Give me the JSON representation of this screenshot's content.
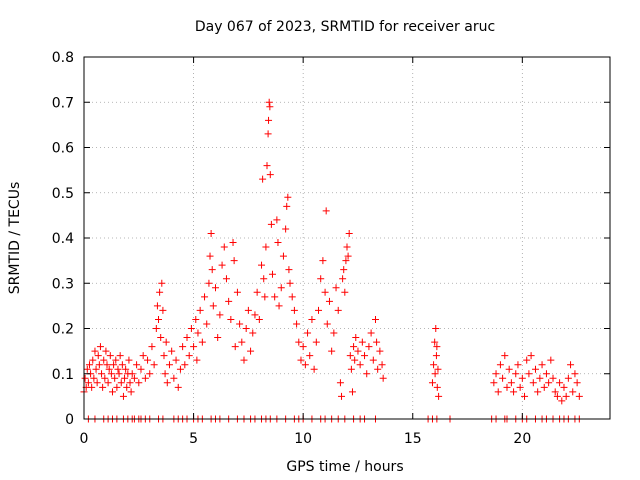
{
  "chart_data": {
    "type": "scatter",
    "title": "Day 067 of 2023, SRMTID for receiver aruc",
    "xlabel": "GPS time / hours",
    "ylabel": "SRMTID / TECUs",
    "xlim": [
      0,
      24
    ],
    "ylim": [
      0,
      0.8
    ],
    "xticks": [
      0,
      5,
      10,
      15,
      20
    ],
    "xtick_labels": [
      "0",
      "5",
      "10",
      "15",
      "20"
    ],
    "yticks": [
      0,
      0.1,
      0.2,
      0.3,
      0.4,
      0.5,
      0.6,
      0.7,
      0.8
    ],
    "ytick_labels": [
      "0",
      "0.1",
      "0.2",
      "0.3",
      "0.4",
      "0.5",
      "0.6",
      "0.7",
      "0.8"
    ],
    "grid": true,
    "marker": "+",
    "series": [
      {
        "name": "SRMTID",
        "color": "#ff0000",
        "points": [
          [
            0.0,
            0.06
          ],
          [
            0.05,
            0.09
          ],
          [
            0.1,
            0.07
          ],
          [
            0.15,
            0.11
          ],
          [
            0.2,
            0.08
          ],
          [
            0.25,
            0.12
          ],
          [
            0.3,
            0.1
          ],
          [
            0.35,
            0.07
          ],
          [
            0.4,
            0.13
          ],
          [
            0.45,
            0.09
          ],
          [
            0.5,
            0.15
          ],
          [
            0.55,
            0.11
          ],
          [
            0.6,
            0.08
          ],
          [
            0.65,
            0.14
          ],
          [
            0.7,
            0.12
          ],
          [
            0.75,
            0.16
          ],
          [
            0.8,
            0.1
          ],
          [
            0.85,
            0.07
          ],
          [
            0.9,
            0.13
          ],
          [
            0.95,
            0.09
          ],
          [
            1.0,
            0.15
          ],
          [
            1.05,
            0.12
          ],
          [
            1.1,
            0.08
          ],
          [
            1.15,
            0.11
          ],
          [
            1.2,
            0.14
          ],
          [
            1.25,
            0.1
          ],
          [
            1.3,
            0.06
          ],
          [
            1.35,
            0.12
          ],
          [
            1.4,
            0.09
          ],
          [
            1.45,
            0.13
          ],
          [
            1.5,
            0.07
          ],
          [
            1.55,
            0.11
          ],
          [
            1.6,
            0.1
          ],
          [
            1.65,
            0.14
          ],
          [
            1.7,
            0.08
          ],
          [
            1.75,
            0.12
          ],
          [
            1.8,
            0.05
          ],
          [
            1.85,
            0.09
          ],
          [
            1.9,
            0.11
          ],
          [
            1.95,
            0.07
          ],
          [
            2.0,
            0.1
          ],
          [
            2.05,
            0.13
          ],
          [
            2.1,
            0.08
          ],
          [
            2.15,
            0.06
          ],
          [
            2.2,
            0.1
          ],
          [
            2.3,
            0.09
          ],
          [
            2.4,
            0.12
          ],
          [
            2.5,
            0.08
          ],
          [
            2.6,
            0.11
          ],
          [
            2.7,
            0.14
          ],
          [
            2.8,
            0.09
          ],
          [
            2.9,
            0.13
          ],
          [
            3.0,
            0.1
          ],
          [
            3.1,
            0.16
          ],
          [
            3.2,
            0.12
          ],
          [
            3.3,
            0.2
          ],
          [
            3.35,
            0.25
          ],
          [
            3.4,
            0.22
          ],
          [
            3.45,
            0.28
          ],
          [
            3.5,
            0.18
          ],
          [
            3.55,
            0.3
          ],
          [
            3.6,
            0.24
          ],
          [
            3.65,
            0.14
          ],
          [
            3.7,
            0.1
          ],
          [
            3.75,
            0.17
          ],
          [
            3.8,
            0.08
          ],
          [
            3.9,
            0.12
          ],
          [
            4.0,
            0.15
          ],
          [
            4.1,
            0.09
          ],
          [
            4.2,
            0.13
          ],
          [
            4.3,
            0.07
          ],
          [
            4.4,
            0.11
          ],
          [
            4.5,
            0.16
          ],
          [
            4.6,
            0.12
          ],
          [
            4.7,
            0.18
          ],
          [
            4.8,
            0.14
          ],
          [
            4.9,
            0.2
          ],
          [
            5.0,
            0.16
          ],
          [
            5.1,
            0.22
          ],
          [
            5.15,
            0.13
          ],
          [
            5.2,
            0.19
          ],
          [
            5.3,
            0.24
          ],
          [
            5.4,
            0.17
          ],
          [
            5.5,
            0.27
          ],
          [
            5.6,
            0.21
          ],
          [
            5.7,
            0.3
          ],
          [
            5.75,
            0.36
          ],
          [
            5.8,
            0.41
          ],
          [
            5.85,
            0.33
          ],
          [
            5.9,
            0.25
          ],
          [
            6.0,
            0.29
          ],
          [
            6.1,
            0.18
          ],
          [
            6.2,
            0.23
          ],
          [
            6.3,
            0.34
          ],
          [
            6.4,
            0.38
          ],
          [
            6.5,
            0.31
          ],
          [
            6.6,
            0.26
          ],
          [
            6.7,
            0.22
          ],
          [
            6.8,
            0.39
          ],
          [
            6.85,
            0.35
          ],
          [
            6.9,
            0.16
          ],
          [
            7.0,
            0.28
          ],
          [
            7.1,
            0.21
          ],
          [
            7.2,
            0.17
          ],
          [
            7.3,
            0.13
          ],
          [
            7.4,
            0.2
          ],
          [
            7.5,
            0.24
          ],
          [
            7.6,
            0.15
          ],
          [
            7.7,
            0.19
          ],
          [
            7.8,
            0.23
          ],
          [
            7.9,
            0.28
          ],
          [
            8.0,
            0.22
          ],
          [
            8.1,
            0.34
          ],
          [
            8.15,
            0.53
          ],
          [
            8.2,
            0.31
          ],
          [
            8.25,
            0.27
          ],
          [
            8.3,
            0.38
          ],
          [
            8.35,
            0.56
          ],
          [
            8.4,
            0.63
          ],
          [
            8.42,
            0.66
          ],
          [
            8.45,
            0.7
          ],
          [
            8.48,
            0.69
          ],
          [
            8.5,
            0.54
          ],
          [
            8.55,
            0.43
          ],
          [
            8.6,
            0.32
          ],
          [
            8.7,
            0.27
          ],
          [
            8.8,
            0.44
          ],
          [
            8.85,
            0.39
          ],
          [
            8.9,
            0.25
          ],
          [
            9.0,
            0.29
          ],
          [
            9.1,
            0.36
          ],
          [
            9.2,
            0.42
          ],
          [
            9.25,
            0.47
          ],
          [
            9.3,
            0.49
          ],
          [
            9.35,
            0.33
          ],
          [
            9.4,
            0.3
          ],
          [
            9.5,
            0.27
          ],
          [
            9.6,
            0.24
          ],
          [
            9.7,
            0.21
          ],
          [
            9.8,
            0.17
          ],
          [
            9.9,
            0.13
          ],
          [
            10.0,
            0.16
          ],
          [
            10.1,
            0.12
          ],
          [
            10.2,
            0.19
          ],
          [
            10.3,
            0.14
          ],
          [
            10.4,
            0.22
          ],
          [
            10.5,
            0.11
          ],
          [
            10.6,
            0.17
          ],
          [
            10.7,
            0.24
          ],
          [
            10.8,
            0.31
          ],
          [
            10.9,
            0.35
          ],
          [
            11.0,
            0.28
          ],
          [
            11.05,
            0.46
          ],
          [
            11.1,
            0.21
          ],
          [
            11.2,
            0.26
          ],
          [
            11.3,
            0.15
          ],
          [
            11.4,
            0.19
          ],
          [
            11.5,
            0.29
          ],
          [
            11.6,
            0.24
          ],
          [
            11.7,
            0.08
          ],
          [
            11.75,
            0.05
          ],
          [
            11.8,
            0.31
          ],
          [
            11.85,
            0.33
          ],
          [
            11.9,
            0.28
          ],
          [
            11.95,
            0.35
          ],
          [
            12.0,
            0.38
          ],
          [
            12.05,
            0.36
          ],
          [
            12.1,
            0.41
          ],
          [
            12.15,
            0.14
          ],
          [
            12.2,
            0.11
          ],
          [
            12.25,
            0.06
          ],
          [
            12.3,
            0.16
          ],
          [
            12.35,
            0.13
          ],
          [
            12.4,
            0.18
          ],
          [
            12.5,
            0.15
          ],
          [
            12.6,
            0.12
          ],
          [
            12.7,
            0.17
          ],
          [
            12.8,
            0.14
          ],
          [
            12.9,
            0.1
          ],
          [
            13.0,
            0.16
          ],
          [
            13.1,
            0.19
          ],
          [
            13.2,
            0.13
          ],
          [
            13.3,
            0.22
          ],
          [
            13.35,
            0.17
          ],
          [
            13.4,
            0.11
          ],
          [
            13.5,
            0.15
          ],
          [
            13.6,
            0.12
          ],
          [
            13.65,
            0.09
          ],
          [
            15.9,
            0.08
          ],
          [
            15.95,
            0.12
          ],
          [
            16.0,
            0.17
          ],
          [
            16.02,
            0.1
          ],
          [
            16.05,
            0.2
          ],
          [
            16.08,
            0.14
          ],
          [
            16.1,
            0.16
          ],
          [
            16.12,
            0.07
          ],
          [
            16.15,
            0.11
          ],
          [
            16.18,
            0.05
          ],
          [
            18.7,
            0.08
          ],
          [
            18.8,
            0.1
          ],
          [
            18.9,
            0.06
          ],
          [
            19.0,
            0.12
          ],
          [
            19.1,
            0.09
          ],
          [
            19.2,
            0.14
          ],
          [
            19.3,
            0.07
          ],
          [
            19.4,
            0.11
          ],
          [
            19.5,
            0.08
          ],
          [
            19.6,
            0.06
          ],
          [
            19.7,
            0.1
          ],
          [
            19.8,
            0.12
          ],
          [
            19.9,
            0.07
          ],
          [
            20.0,
            0.09
          ],
          [
            20.1,
            0.05
          ],
          [
            20.2,
            0.13
          ],
          [
            20.3,
            0.1
          ],
          [
            20.4,
            0.14
          ],
          [
            20.5,
            0.08
          ],
          [
            20.6,
            0.11
          ],
          [
            20.7,
            0.06
          ],
          [
            20.8,
            0.09
          ],
          [
            20.9,
            0.12
          ],
          [
            21.0,
            0.07
          ],
          [
            21.1,
            0.1
          ],
          [
            21.2,
            0.08
          ],
          [
            21.3,
            0.13
          ],
          [
            21.4,
            0.09
          ],
          [
            21.5,
            0.06
          ],
          [
            21.6,
            0.05
          ],
          [
            21.7,
            0.08
          ],
          [
            21.8,
            0.04
          ],
          [
            21.9,
            0.07
          ],
          [
            22.0,
            0.05
          ],
          [
            22.1,
            0.09
          ],
          [
            22.2,
            0.12
          ],
          [
            22.3,
            0.06
          ],
          [
            22.4,
            0.1
          ],
          [
            22.5,
            0.08
          ],
          [
            22.6,
            0.05
          ]
        ],
        "zero_points_x": [
          0.2,
          0.5,
          0.9,
          1.1,
          1.3,
          1.5,
          1.8,
          2.0,
          2.2,
          2.3,
          2.5,
          2.6,
          2.8,
          3.0,
          3.4,
          3.6,
          4.1,
          4.3,
          4.5,
          4.7,
          5.0,
          5.2,
          5.4,
          5.8,
          6.0,
          6.2,
          6.6,
          7.0,
          7.3,
          7.6,
          7.8,
          8.1,
          8.3,
          8.5,
          8.8,
          9.2,
          9.6,
          9.8,
          10.0,
          10.4,
          10.8,
          11.0,
          11.3,
          11.6,
          11.9,
          12.3,
          12.6,
          12.8,
          13.3,
          15.7,
          15.9,
          16.1,
          16.7,
          18.6,
          18.8,
          19.2,
          19.3,
          19.7,
          20.0,
          20.2,
          20.6,
          20.9,
          21.1,
          21.4,
          21.7,
          21.9,
          22.1,
          22.4,
          22.6
        ]
      }
    ]
  }
}
